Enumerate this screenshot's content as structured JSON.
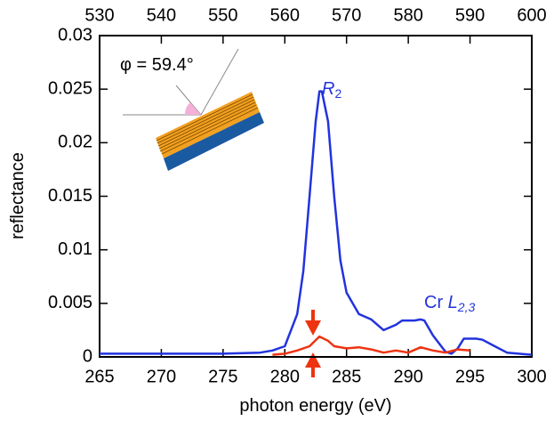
{
  "chart_data": {
    "type": "line",
    "xlabel": "photon energy (eV)",
    "ylabel": "reflectance",
    "xlim": [
      265,
      300
    ],
    "xticks": [
      265,
      270,
      275,
      280,
      285,
      290,
      295,
      300
    ],
    "x2lim": [
      530,
      600
    ],
    "x2ticks": [
      530,
      540,
      550,
      560,
      570,
      580,
      590,
      600
    ],
    "ylim": [
      0,
      0.03
    ],
    "yticks": [
      0,
      0.005,
      0.01,
      0.015,
      0.02,
      0.025,
      0.03
    ],
    "series": [
      {
        "color": "#2233dd",
        "x": [
          265,
          270,
          275,
          278,
          279,
          280,
          281,
          281.5,
          282,
          282.5,
          282.8,
          283,
          283.5,
          284,
          284.5,
          285,
          286,
          287,
          288,
          289,
          289.5,
          290.5,
          291,
          291.3,
          292,
          293,
          293.5,
          294,
          294.5,
          295.5,
          296,
          297,
          298,
          300
        ],
        "values": [
          0.0003,
          0.0003,
          0.0003,
          0.0004,
          0.0006,
          0.001,
          0.004,
          0.008,
          0.015,
          0.022,
          0.0248,
          0.0248,
          0.022,
          0.015,
          0.009,
          0.006,
          0.004,
          0.0035,
          0.0025,
          0.003,
          0.0034,
          0.0034,
          0.0035,
          0.0034,
          0.002,
          0.0005,
          0.0003,
          0.0008,
          0.0017,
          0.0017,
          0.0016,
          0.001,
          0.0004,
          0.0002
        ]
      },
      {
        "color": "#ee3311",
        "x": [
          279,
          280,
          281,
          282,
          282.8,
          283.5,
          284,
          285,
          286,
          287,
          288,
          289,
          290,
          291,
          292,
          293,
          294,
          295
        ],
        "values": [
          0.0002,
          0.0003,
          0.0006,
          0.001,
          0.0019,
          0.0015,
          0.001,
          0.0008,
          0.0009,
          0.0007,
          0.0004,
          0.0006,
          0.0004,
          0.0009,
          0.0006,
          0.0004,
          0.0007,
          0.0006
        ]
      }
    ],
    "annotations": [
      {
        "text": "R",
        "sub": "2"
      },
      {
        "text": "Cr ",
        "italic": "L",
        "sub": "2,3"
      },
      {
        "text": "φ = 59.4°"
      }
    ]
  }
}
